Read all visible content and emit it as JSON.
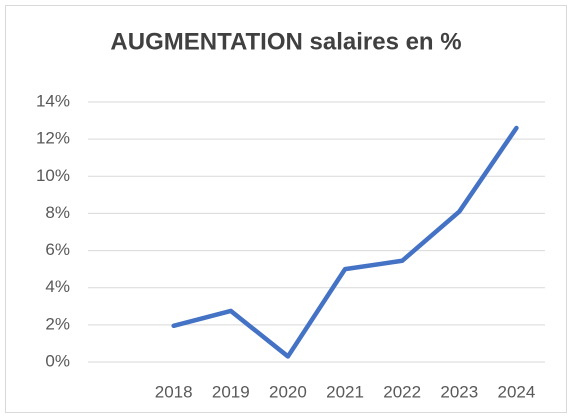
{
  "chart_data": {
    "type": "line",
    "title": "AUGMENTATION salaires en %",
    "categories": [
      null,
      "2018",
      "2019",
      "2020",
      "2021",
      "2022",
      "2023",
      "2024"
    ],
    "series": [
      {
        "name": "AUGMENTATION salaires en %",
        "color": "#4472c4",
        "values": [
          null,
          1.95,
          2.75,
          0.3,
          5.0,
          5.45,
          8.1,
          12.6
        ]
      }
    ],
    "ylim": [
      0,
      14
    ],
    "yticks": [
      {
        "value": 0,
        "label": "0%"
      },
      {
        "value": 2,
        "label": "2%"
      },
      {
        "value": 4,
        "label": "4%"
      },
      {
        "value": 6,
        "label": "6%"
      },
      {
        "value": 8,
        "label": "8%"
      },
      {
        "value": 10,
        "label": "10%"
      },
      {
        "value": 12,
        "label": "12%"
      },
      {
        "value": 14,
        "label": "14%"
      }
    ],
    "grid": true,
    "legend": false
  }
}
